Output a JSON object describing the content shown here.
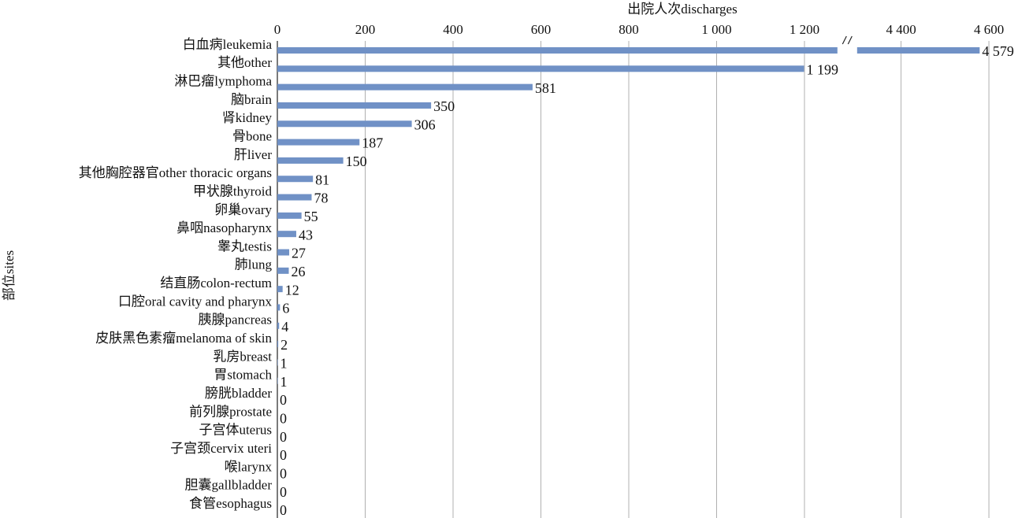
{
  "chart_data": {
    "type": "bar",
    "orientation": "horizontal",
    "x_label": "出院人次discharges",
    "y_label": "部位sites",
    "categories": [
      "白血病leukemia",
      "其他other",
      "淋巴瘤lymphoma",
      "脑brain",
      "肾kidney",
      "骨bone",
      "肝liver",
      "其他胸腔器官other thoracic organs",
      "甲状腺thyroid",
      "卵巢ovary",
      "鼻咽nasopharynx",
      "睾丸testis",
      "肺lung",
      "结直肠colon-rectum",
      "口腔oral cavity and pharynx",
      "胰腺pancreas",
      "皮肤黑色素瘤melanoma of skin",
      "乳房breast",
      "胃stomach",
      "膀胱bladder",
      "前列腺prostate",
      "子宫体uterus",
      "子宫颈cervix uteri",
      "喉larynx",
      "胆囊gallbladder",
      "食管esophagus"
    ],
    "values": [
      4579,
      1199,
      581,
      350,
      306,
      187,
      150,
      81,
      78,
      55,
      43,
      27,
      26,
      12,
      6,
      4,
      2,
      1,
      1,
      0,
      0,
      0,
      0,
      0,
      0,
      0
    ],
    "value_labels": [
      "4 579",
      "1 199",
      "581",
      "350",
      "306",
      "187",
      "150",
      "81",
      "78",
      "55",
      "43",
      "27",
      "26",
      "12",
      "6",
      "4",
      "2",
      "1",
      "1",
      "0",
      "0",
      "0",
      "0",
      "0",
      "0",
      "0"
    ],
    "color": "#7091c6",
    "xlim": [
      0,
      4650
    ],
    "x_break": [
      1275,
      4300
    ],
    "xticks": [
      0,
      200,
      400,
      600,
      800,
      {
        "value": 1000,
        "label": "1 000"
      },
      {
        "value": 1200,
        "label": "1 200"
      },
      {
        "value": 4400,
        "label": "4 400"
      },
      {
        "value": 4600,
        "label": "4 600"
      }
    ],
    "grid": true
  }
}
